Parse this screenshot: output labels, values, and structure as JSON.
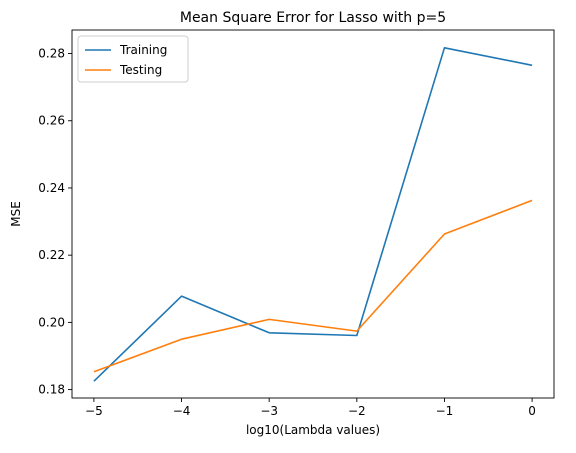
{
  "chart_data": {
    "type": "line",
    "title": "Mean Square Error for Lasso with p=5",
    "xlabel": "log10(Lambda values)",
    "ylabel": "MSE",
    "x": [
      -5,
      -4,
      -3,
      -2,
      -1,
      0
    ],
    "xlim": [
      -5.25,
      0.25
    ],
    "ylim": [
      0.1775,
      0.287
    ],
    "xticks": [
      -5,
      -4,
      -3,
      -2,
      -1,
      0
    ],
    "xtick_labels": [
      "−5",
      "−4",
      "−3",
      "−2",
      "−1",
      "0"
    ],
    "yticks": [
      0.18,
      0.2,
      0.22,
      0.24,
      0.26,
      0.28
    ],
    "ytick_labels": [
      "0.18",
      "0.20",
      "0.22",
      "0.24",
      "0.26",
      "0.28"
    ],
    "grid": false,
    "legend_position": "upper-left",
    "series": [
      {
        "name": "Training",
        "color": "#1f77b4",
        "values": [
          0.1825,
          0.2078,
          0.1969,
          0.1961,
          0.2817,
          0.2765
        ]
      },
      {
        "name": "Testing",
        "color": "#ff7f0e",
        "values": [
          0.1853,
          0.195,
          0.2009,
          0.1974,
          0.2263,
          0.2363
        ]
      }
    ]
  }
}
